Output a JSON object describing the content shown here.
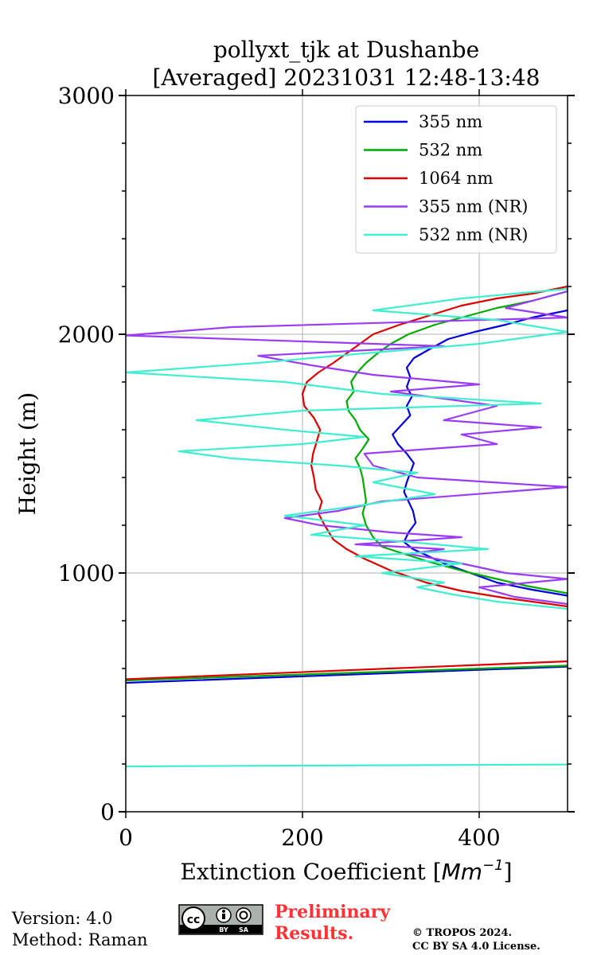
{
  "chart_data": {
    "type": "line",
    "title_line1": "pollyxt_tjk at Dushanbe",
    "title_line2": "[Averaged] 20231031 12:48-13:48",
    "xlabel": "Extinction Coefficient [Mm⁻¹]",
    "xlabel_main": "Extinction Coefficient [",
    "xlabel_unit": "Mm",
    "xlabel_sup": "−1",
    "xlabel_end": "]",
    "ylabel": "Height (m)",
    "xlim": [
      0,
      500
    ],
    "ylim": [
      0,
      3000
    ],
    "x_ticks": [
      0,
      200,
      400
    ],
    "x_tick_labels": [
      "0",
      "200",
      "400"
    ],
    "y_ticks": [
      0,
      1000,
      2000,
      3000
    ],
    "y_tick_labels": [
      "0",
      "1000",
      "2000",
      "3000"
    ],
    "y_minor_step": 200,
    "grid": true,
    "legend_position": "top-right",
    "series": [
      {
        "name": "355 nm",
        "color": "#0000dd",
        "points": [
          [
            0,
            540
          ],
          [
            500,
            608
          ],
          [
            null,
            null
          ],
          [
            500,
            905
          ],
          [
            460,
            930
          ],
          [
            420,
            960
          ],
          [
            390,
            1000
          ],
          [
            360,
            1040
          ],
          [
            340,
            1075
          ],
          [
            325,
            1100
          ],
          [
            315,
            1130
          ],
          [
            320,
            1170
          ],
          [
            328,
            1210
          ],
          [
            325,
            1260
          ],
          [
            320,
            1300
          ],
          [
            315,
            1340
          ],
          [
            318,
            1380
          ],
          [
            322,
            1420
          ],
          [
            326,
            1460
          ],
          [
            318,
            1500
          ],
          [
            308,
            1540
          ],
          [
            302,
            1580
          ],
          [
            312,
            1620
          ],
          [
            322,
            1660
          ],
          [
            318,
            1700
          ],
          [
            324,
            1740
          ],
          [
            318,
            1780
          ],
          [
            322,
            1820
          ],
          [
            318,
            1860
          ],
          [
            326,
            1900
          ],
          [
            345,
            1940
          ],
          [
            365,
            1980
          ],
          [
            395,
            2010
          ],
          [
            430,
            2040
          ],
          [
            460,
            2070
          ],
          [
            500,
            2100
          ]
        ]
      },
      {
        "name": "532 nm",
        "color": "#00aa00",
        "points": [
          [
            0,
            550
          ],
          [
            500,
            612
          ],
          [
            null,
            null
          ],
          [
            500,
            915
          ],
          [
            455,
            945
          ],
          [
            420,
            975
          ],
          [
            385,
            1005
          ],
          [
            345,
            1045
          ],
          [
            315,
            1080
          ],
          [
            290,
            1110
          ],
          [
            280,
            1150
          ],
          [
            272,
            1200
          ],
          [
            268,
            1250
          ],
          [
            272,
            1300
          ],
          [
            270,
            1350
          ],
          [
            268,
            1400
          ],
          [
            265,
            1440
          ],
          [
            260,
            1480
          ],
          [
            268,
            1520
          ],
          [
            275,
            1560
          ],
          [
            265,
            1600
          ],
          [
            260,
            1640
          ],
          [
            252,
            1680
          ],
          [
            250,
            1720
          ],
          [
            258,
            1760
          ],
          [
            255,
            1800
          ],
          [
            262,
            1840
          ],
          [
            272,
            1880
          ],
          [
            285,
            1920
          ],
          [
            300,
            1960
          ],
          [
            320,
            2000
          ],
          [
            350,
            2040
          ],
          [
            380,
            2070
          ],
          [
            420,
            2110
          ],
          [
            460,
            2140
          ],
          [
            500,
            2180
          ]
        ]
      },
      {
        "name": "1064 nm",
        "color": "#dd0000",
        "points": [
          [
            0,
            555
          ],
          [
            500,
            630
          ],
          [
            null,
            null
          ],
          [
            500,
            860
          ],
          [
            430,
            895
          ],
          [
            380,
            925
          ],
          [
            340,
            960
          ],
          [
            300,
            1010
          ],
          [
            270,
            1060
          ],
          [
            250,
            1100
          ],
          [
            235,
            1140
          ],
          [
            225,
            1200
          ],
          [
            218,
            1250
          ],
          [
            222,
            1300
          ],
          [
            215,
            1350
          ],
          [
            213,
            1400
          ],
          [
            210,
            1450
          ],
          [
            212,
            1500
          ],
          [
            216,
            1550
          ],
          [
            220,
            1600
          ],
          [
            213,
            1650
          ],
          [
            202,
            1700
          ],
          [
            200,
            1750
          ],
          [
            205,
            1800
          ],
          [
            218,
            1840
          ],
          [
            235,
            1880
          ],
          [
            250,
            1920
          ],
          [
            265,
            1960
          ],
          [
            280,
            2000
          ],
          [
            310,
            2040
          ],
          [
            345,
            2080
          ],
          [
            380,
            2120
          ],
          [
            420,
            2150
          ],
          [
            460,
            2170
          ],
          [
            500,
            2200
          ]
        ]
      },
      {
        "name": "355 nm (NR)",
        "color": "#9b3cf5",
        "points": [
          [
            500,
            870
          ],
          [
            440,
            900
          ],
          [
            400,
            940
          ],
          [
            500,
            975
          ],
          [
            430,
            1000
          ],
          [
            380,
            1040
          ],
          [
            320,
            1080
          ],
          [
            360,
            1100
          ],
          [
            260,
            1120
          ],
          [
            380,
            1150
          ],
          [
            300,
            1170
          ],
          [
            220,
            1200
          ],
          [
            180,
            1230
          ],
          [
            240,
            1260
          ],
          [
            290,
            1300
          ],
          [
            500,
            1360
          ],
          [
            330,
            1400
          ],
          [
            280,
            1450
          ],
          [
            270,
            1500
          ],
          [
            420,
            1540
          ],
          [
            380,
            1580
          ],
          [
            470,
            1610
          ],
          [
            360,
            1640
          ],
          [
            420,
            1700
          ],
          [
            300,
            1760
          ],
          [
            400,
            1790
          ],
          [
            280,
            1830
          ],
          [
            210,
            1870
          ],
          [
            150,
            1910
          ],
          [
            360,
            1950
          ],
          [
            0,
            1995
          ],
          [
            120,
            2030
          ],
          [
            500,
            2070
          ],
          [
            430,
            2110
          ],
          [
            500,
            2180
          ],
          [
            500,
            2200
          ]
        ]
      },
      {
        "name": "532 nm (NR)",
        "color": "#40eed0",
        "points": [
          [
            0,
            190
          ],
          [
            500,
            198
          ],
          [
            null,
            null
          ],
          [
            500,
            850
          ],
          [
            420,
            880
          ],
          [
            370,
            910
          ],
          [
            330,
            940
          ],
          [
            360,
            960
          ],
          [
            290,
            1000
          ],
          [
            380,
            1040
          ],
          [
            260,
            1070
          ],
          [
            410,
            1100
          ],
          [
            320,
            1130
          ],
          [
            210,
            1160
          ],
          [
            270,
            1200
          ],
          [
            180,
            1240
          ],
          [
            260,
            1280
          ],
          [
            350,
            1330
          ],
          [
            280,
            1380
          ],
          [
            330,
            1420
          ],
          [
            240,
            1450
          ],
          [
            120,
            1480
          ],
          [
            60,
            1510
          ],
          [
            200,
            1540
          ],
          [
            270,
            1570
          ],
          [
            180,
            1600
          ],
          [
            80,
            1640
          ],
          [
            200,
            1680
          ],
          [
            470,
            1710
          ],
          [
            290,
            1750
          ],
          [
            180,
            1800
          ],
          [
            0,
            1840
          ],
          [
            150,
            1880
          ],
          [
            270,
            1920
          ],
          [
            400,
            1960
          ],
          [
            500,
            2010
          ],
          [
            420,
            2060
          ],
          [
            280,
            2100
          ],
          [
            380,
            2150
          ],
          [
            500,
            2190
          ]
        ]
      }
    ]
  },
  "footer": {
    "version": "Version: 4.0",
    "method": "Method: Raman",
    "preliminary_line1": "Preliminary",
    "preliminary_line2": "Results.",
    "copyright_line1": "© TROPOS 2024.",
    "copyright_line2": "CC BY SA 4.0 License.",
    "license_badge_text": "cc",
    "license_by": "BY",
    "license_sa": "SA"
  }
}
